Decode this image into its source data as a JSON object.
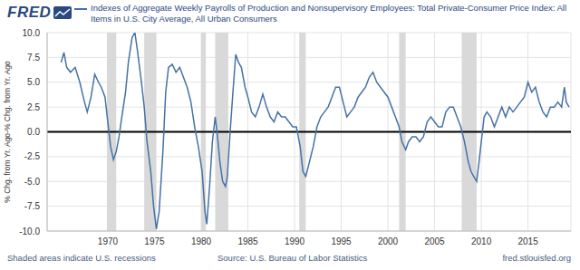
{
  "chart_data": {
    "type": "line",
    "logo": "FRED",
    "title": "Indexes of Aggregate Weekly Payrolls of Production and Nonsupervisory Employees: Total Private-Consumer Price Index: All Items in U.S. City Average, All Urban Consumers",
    "y_label": "% Chg. from Yr. Ago-% Chg. from Yr. Ago",
    "recession_note": "Shaded areas indicate U.S. recessions",
    "source": "Source: U.S. Bureau of Labor Statistics",
    "site": "fred.stlouisfed.org",
    "grid": true,
    "xlim": [
      1963.5,
      2019.6
    ],
    "xticks": [
      1970,
      1975,
      1980,
      1985,
      1990,
      1995,
      2000,
      2005,
      2010,
      2015
    ],
    "ylim": [
      -10,
      10
    ],
    "yticks": [
      {
        "value": -10,
        "label": "-10.0"
      },
      -7.5,
      {
        "value": -5,
        "label": "-5.0"
      },
      -2.5,
      {
        "value": 0,
        "label": "0.0"
      },
      2.5,
      {
        "value": 5,
        "label": "5.0"
      },
      7.5,
      {
        "value": 10,
        "label": "10.0"
      }
    ],
    "recessions": [
      {
        "start": 1969.9,
        "end": 1970.9
      },
      {
        "start": 1973.9,
        "end": 1975.2
      },
      {
        "start": 1980.0,
        "end": 1980.5
      },
      {
        "start": 1981.5,
        "end": 1982.9
      },
      {
        "start": 1990.5,
        "end": 1991.2
      },
      {
        "start": 2001.2,
        "end": 2001.9
      },
      {
        "start": 2007.9,
        "end": 2009.5
      }
    ],
    "x": [
      1965.0,
      1965.3,
      1965.6,
      1966.0,
      1966.5,
      1967.0,
      1967.5,
      1967.8,
      1968.2,
      1968.6,
      1969.0,
      1969.3,
      1969.7,
      1970.0,
      1970.3,
      1970.6,
      1970.9,
      1971.2,
      1971.5,
      1971.9,
      1972.2,
      1972.6,
      1972.9,
      1973.2,
      1973.6,
      1973.9,
      1974.2,
      1974.6,
      1974.9,
      1975.2,
      1975.5,
      1975.9,
      1976.2,
      1976.5,
      1976.9,
      1977.3,
      1977.7,
      1978.1,
      1978.5,
      1978.9,
      1979.3,
      1979.7,
      1980.1,
      1980.4,
      1980.6,
      1980.9,
      1981.2,
      1981.5,
      1981.7,
      1982.0,
      1982.3,
      1982.6,
      1982.8,
      1983.1,
      1983.4,
      1983.7,
      1984.0,
      1984.3,
      1984.7,
      1985.0,
      1985.4,
      1985.8,
      1986.2,
      1986.6,
      1987.0,
      1987.4,
      1987.8,
      1988.2,
      1988.6,
      1989.0,
      1989.4,
      1989.8,
      1990.2,
      1990.6,
      1990.9,
      1991.2,
      1991.6,
      1992.0,
      1992.4,
      1992.8,
      1993.2,
      1993.6,
      1994.0,
      1994.4,
      1994.8,
      1995.2,
      1995.6,
      1996.0,
      1996.4,
      1996.8,
      1997.2,
      1997.6,
      1998.0,
      1998.4,
      1998.8,
      1999.2,
      1999.6,
      2000.0,
      2000.4,
      2000.8,
      2001.2,
      2001.5,
      2001.9,
      2002.2,
      2002.6,
      2003.0,
      2003.4,
      2003.8,
      2004.2,
      2004.6,
      2005.0,
      2005.4,
      2005.8,
      2006.2,
      2006.6,
      2007.0,
      2007.4,
      2007.8,
      2008.2,
      2008.6,
      2008.9,
      2009.2,
      2009.5,
      2009.7,
      2010.0,
      2010.3,
      2010.6,
      2011.0,
      2011.4,
      2011.8,
      2012.2,
      2012.6,
      2013.0,
      2013.4,
      2013.8,
      2014.2,
      2014.6,
      2015.0,
      2015.4,
      2015.8,
      2016.2,
      2016.6,
      2017.0,
      2017.4,
      2017.8,
      2018.2,
      2018.6,
      2018.9,
      2019.1,
      2019.4
    ],
    "series": [
      {
        "name": "Indexes of Aggregate Weekly Payrolls of Production and Nonsupervisory Employees: Total Private-Consumer Price Index: All Items in U.S. City Average, All Urban Consumers",
        "color": "#4572a7",
        "values": [
          7.0,
          8.0,
          6.5,
          6.0,
          6.5,
          5.0,
          3.0,
          2.0,
          3.5,
          5.8,
          5.0,
          4.5,
          3.5,
          1.0,
          -1.5,
          -2.8,
          -2.0,
          -0.5,
          1.5,
          4.0,
          7.0,
          9.5,
          10.0,
          8.0,
          5.0,
          2.5,
          -1.0,
          -4.0,
          -7.5,
          -9.8,
          -8.0,
          -2.0,
          4.0,
          6.5,
          6.8,
          6.0,
          6.5,
          5.5,
          4.5,
          3.0,
          0.5,
          -1.5,
          -4.0,
          -8.0,
          -9.3,
          -5.5,
          -1.0,
          1.5,
          0.0,
          -3.0,
          -5.0,
          -5.5,
          -4.5,
          0.0,
          4.0,
          7.8,
          7.0,
          6.5,
          4.5,
          3.5,
          2.0,
          1.5,
          2.5,
          3.8,
          2.5,
          1.5,
          1.0,
          2.0,
          1.5,
          1.5,
          1.0,
          0.5,
          0.5,
          -1.5,
          -4.0,
          -4.5,
          -3.0,
          -1.5,
          0.5,
          1.5,
          2.0,
          2.5,
          3.5,
          4.5,
          4.5,
          3.0,
          1.5,
          2.0,
          2.5,
          3.5,
          4.0,
          4.5,
          5.5,
          6.0,
          5.0,
          4.5,
          4.0,
          3.5,
          2.5,
          1.5,
          0.5,
          -1.0,
          -1.8,
          -1.0,
          -0.5,
          -0.5,
          -1.0,
          -0.5,
          1.0,
          1.5,
          1.0,
          0.5,
          0.5,
          2.0,
          2.5,
          2.5,
          1.5,
          0.5,
          -1.0,
          -3.0,
          -4.0,
          -4.5,
          -5.0,
          -3.5,
          -1.0,
          1.5,
          2.0,
          1.5,
          0.5,
          1.5,
          2.5,
          1.5,
          2.5,
          2.0,
          2.5,
          3.0,
          3.5,
          5.0,
          4.0,
          4.5,
          3.0,
          2.0,
          1.5,
          2.5,
          2.5,
          3.0,
          2.5,
          4.5,
          3.0,
          2.5
        ]
      }
    ]
  }
}
